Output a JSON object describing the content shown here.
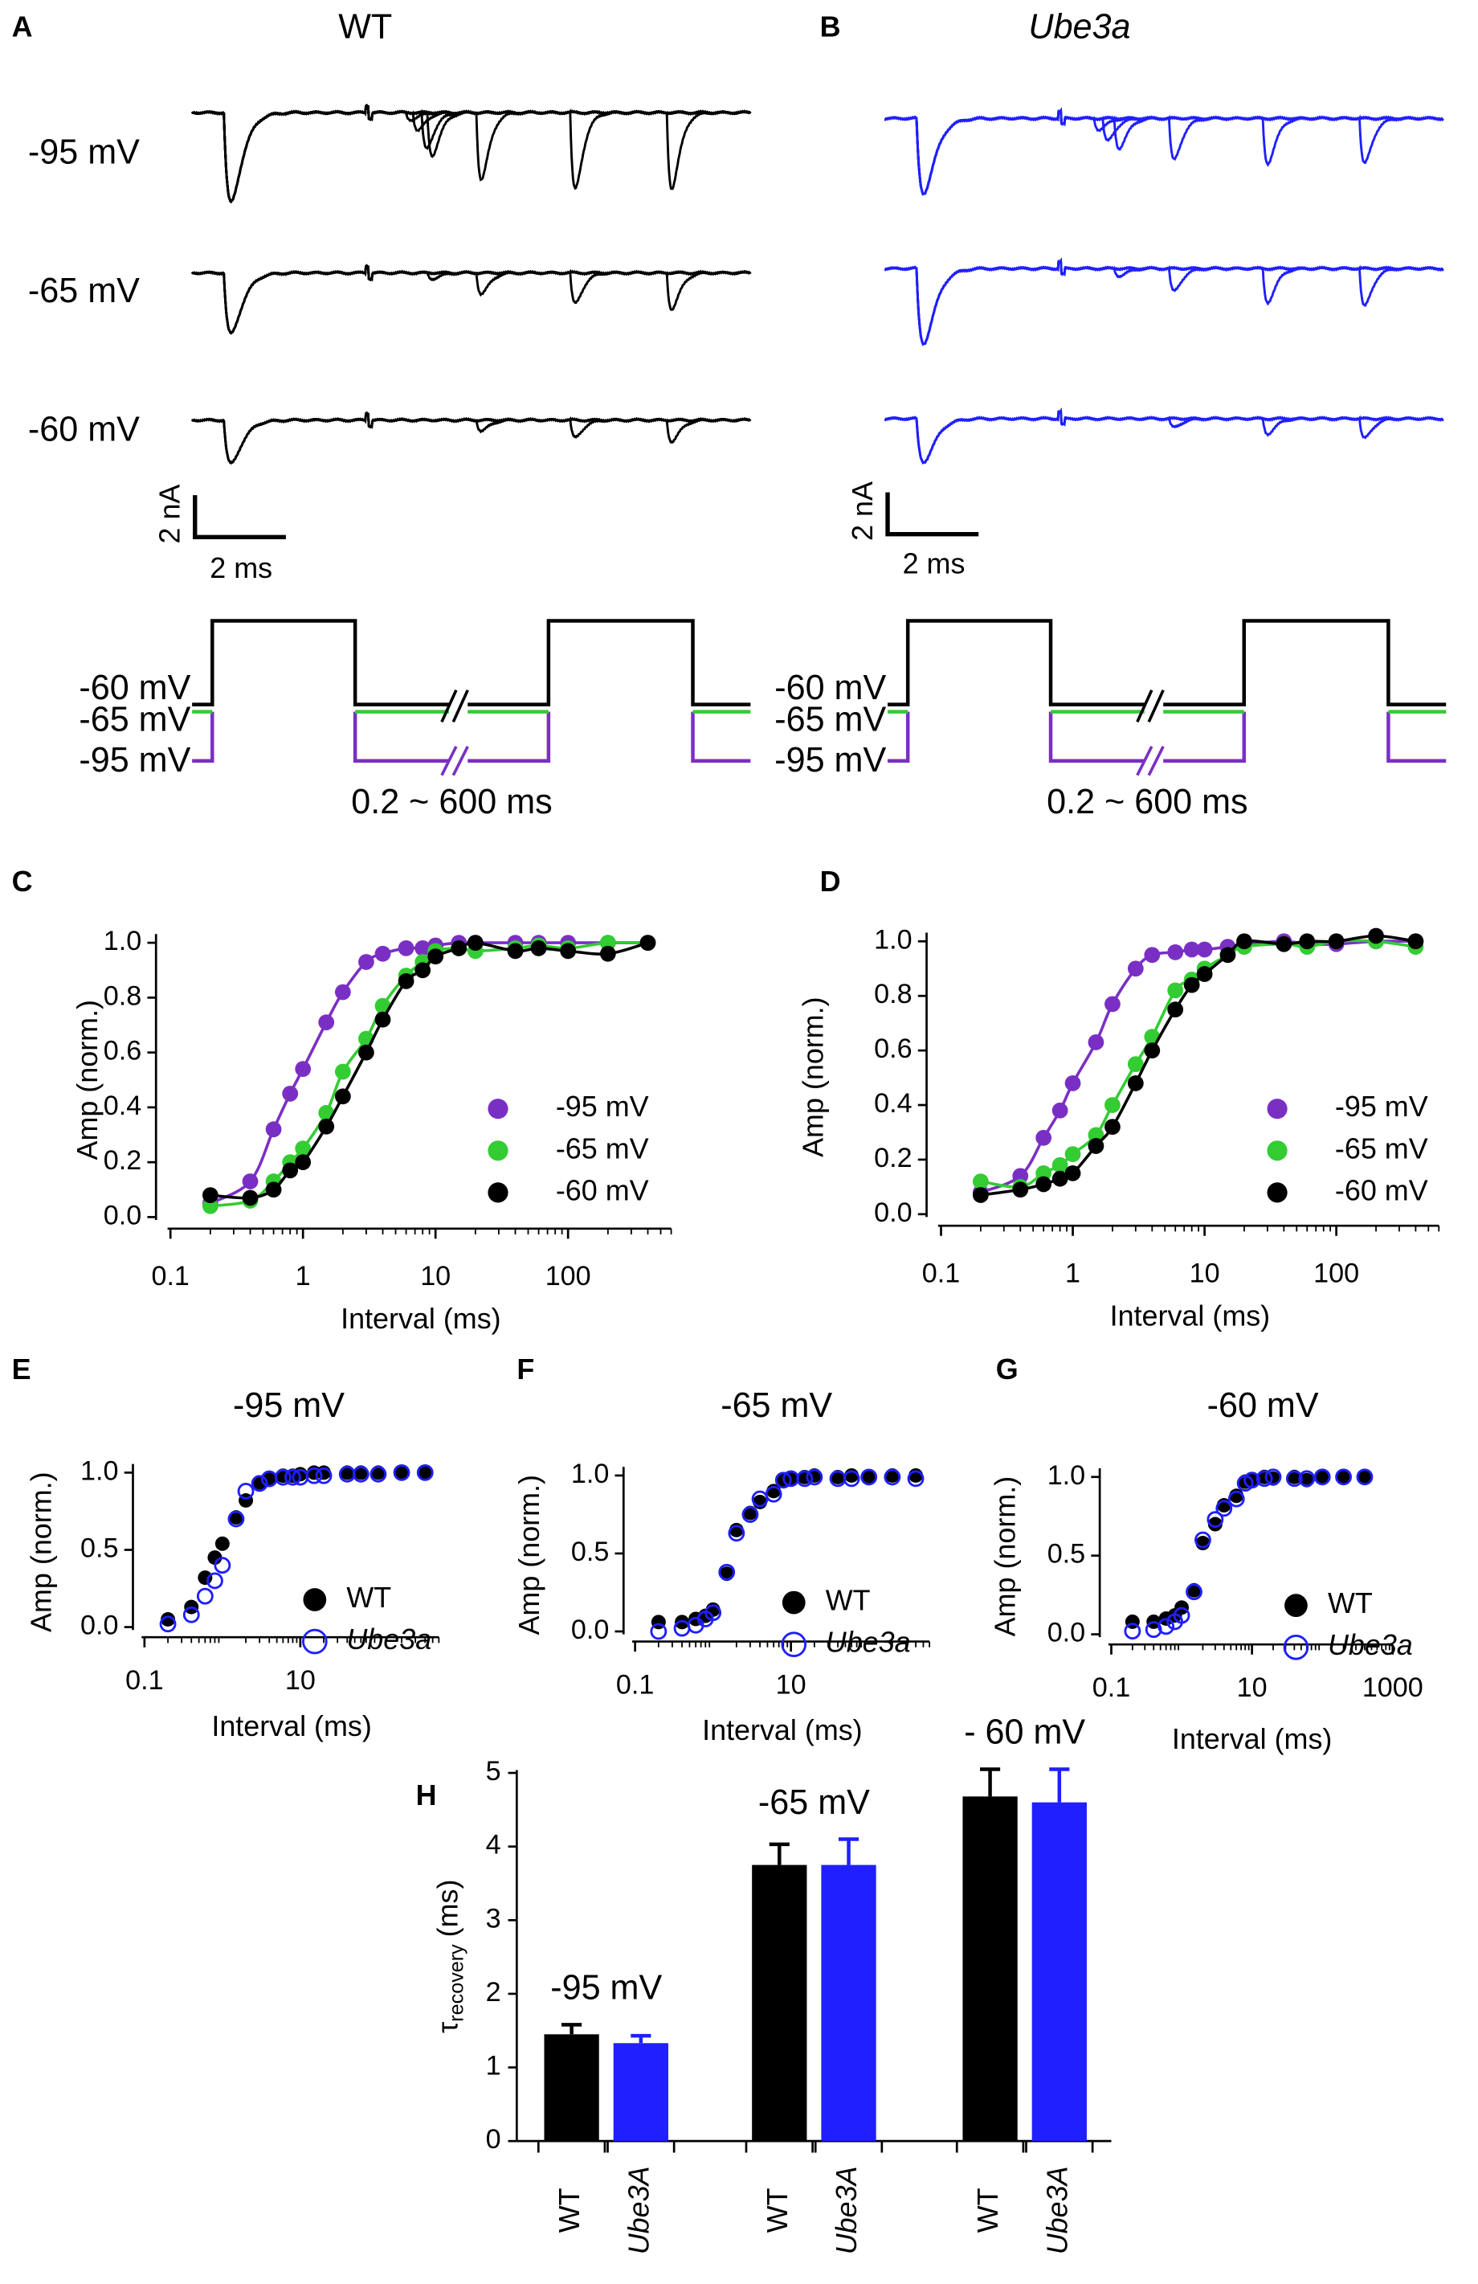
{
  "traces": {
    "A": {
      "letter": "A",
      "title": "WT",
      "color": "#000000",
      "rows": [
        "-95 mV",
        "-65 mV",
        "-60 mV"
      ],
      "scale_y": "2 nA",
      "scale_x": "2 ms",
      "protocol": {
        "levels": [
          "-60 mV",
          "-65 mV",
          "-95 mV"
        ],
        "colors": [
          "#000000",
          "#33cc33",
          "#7a2fc4"
        ],
        "interval": "0.2 ~ 600 ms"
      }
    },
    "B": {
      "letter": "B",
      "title": "Ube3a",
      "color": "#1f1fff",
      "scale_y": "2 nA",
      "scale_x": "2 ms",
      "protocol": {
        "levels": [
          "-60 mV",
          "-65 mV",
          "-95 mV"
        ],
        "colors": [
          "#000000",
          "#33cc33",
          "#7a2fc4"
        ],
        "interval": "0.2 ~ 600 ms"
      }
    }
  },
  "chart_data": [
    {
      "label": "C",
      "type": "scatter",
      "xscale": "log",
      "lines": true,
      "legend": "right",
      "x_label": "Interval (ms)",
      "y_label": "Amp (norm.)",
      "xlim": [
        0.1,
        600
      ],
      "xticks": [
        0.1,
        1,
        10,
        100
      ],
      "ylim": [
        0,
        1
      ],
      "yticks": [
        {
          "value": 0,
          "label": "0.0"
        },
        0.2,
        0.4,
        0.6,
        0.8,
        {
          "value": 1,
          "label": "1.0"
        }
      ],
      "x": [
        0.2,
        0.4,
        0.6,
        0.8,
        1,
        1.5,
        2,
        3,
        4,
        6,
        8,
        10,
        15,
        20,
        40,
        60,
        100,
        200,
        400
      ],
      "series": [
        {
          "name": "-95 mV",
          "color": "#7a2fc4",
          "marker": "filled",
          "values": [
            0.05,
            0.13,
            0.32,
            0.45,
            0.54,
            0.71,
            0.82,
            0.93,
            0.96,
            0.98,
            0.98,
            0.99,
            1.0,
            1.0,
            1.0,
            1.0,
            1.0,
            1.0,
            1.0
          ]
        },
        {
          "name": "-65 mV",
          "color": "#33cc33",
          "marker": "filled",
          "values": [
            0.04,
            0.06,
            0.13,
            0.2,
            0.25,
            0.38,
            0.53,
            0.65,
            0.77,
            0.88,
            0.93,
            0.97,
            0.98,
            0.97,
            0.98,
            0.99,
            0.98,
            1.0,
            1.0
          ]
        },
        {
          "name": "-60 mV",
          "color": "#000000",
          "marker": "filled",
          "values": [
            0.08,
            0.07,
            0.1,
            0.17,
            0.2,
            0.33,
            0.44,
            0.6,
            0.72,
            0.86,
            0.9,
            0.95,
            0.98,
            1.0,
            0.97,
            0.98,
            0.97,
            0.96,
            1.0
          ]
        }
      ]
    },
    {
      "label": "D",
      "type": "scatter",
      "xscale": "log",
      "lines": true,
      "legend": "right",
      "x_label": "Interval (ms)",
      "y_label": "Amp (norm.)",
      "xlim": [
        0.1,
        600
      ],
      "xticks": [
        0.1,
        1,
        10,
        100
      ],
      "ylim": [
        0,
        1
      ],
      "yticks": [
        {
          "value": 0,
          "label": "0.0"
        },
        0.2,
        0.4,
        0.6,
        0.8,
        {
          "value": 1,
          "label": "1.0"
        }
      ],
      "x": [
        0.2,
        0.4,
        0.6,
        0.8,
        1,
        1.5,
        2,
        3,
        4,
        6,
        8,
        10,
        15,
        20,
        40,
        60,
        100,
        200,
        400
      ],
      "series": [
        {
          "name": "-95 mV",
          "color": "#7a2fc4",
          "marker": "filled",
          "values": [
            0.08,
            0.14,
            0.28,
            0.38,
            0.48,
            0.63,
            0.77,
            0.9,
            0.95,
            0.96,
            0.97,
            0.97,
            0.98,
            0.99,
            1.0,
            0.99,
            0.99,
            1.0,
            1.0
          ]
        },
        {
          "name": "-65 mV",
          "color": "#33cc33",
          "marker": "filled",
          "values": [
            0.12,
            0.1,
            0.15,
            0.18,
            0.22,
            0.29,
            0.4,
            0.55,
            0.65,
            0.82,
            0.86,
            0.9,
            0.95,
            0.98,
            0.99,
            0.98,
            1.0,
            1.0,
            0.98
          ]
        },
        {
          "name": "-60 mV",
          "color": "#000000",
          "marker": "filled",
          "values": [
            0.07,
            0.09,
            0.11,
            0.13,
            0.15,
            0.25,
            0.32,
            0.48,
            0.6,
            0.75,
            0.84,
            0.88,
            0.95,
            1.0,
            0.99,
            1.0,
            1.0,
            1.02,
            1.0
          ]
        }
      ]
    },
    {
      "label": "E",
      "type": "scatter",
      "title": "-95 mV",
      "title_color": "#7a2fc4",
      "xscale": "log",
      "lines": false,
      "legend": "right",
      "x_label": "Interval (ms)",
      "y_label": "Amp (norm.)",
      "xlim": [
        0.1,
        600
      ],
      "xticks": [
        0.1,
        10
      ],
      "ylim": [
        0,
        1
      ],
      "yticks": [
        {
          "value": 0,
          "label": "0.0"
        },
        0.5,
        {
          "value": 1,
          "label": "1.0"
        }
      ],
      "x": [
        0.2,
        0.4,
        0.6,
        0.8,
        1,
        1.5,
        2,
        3,
        4,
        6,
        8,
        10,
        15,
        20,
        40,
        60,
        100,
        200,
        400
      ],
      "series": [
        {
          "name": "WT",
          "color": "#000000",
          "marker": "filled",
          "values": [
            0.05,
            0.13,
            0.32,
            0.45,
            0.54,
            0.71,
            0.82,
            0.93,
            0.96,
            0.98,
            0.98,
            0.99,
            1.0,
            1.0,
            1.0,
            1.0,
            1.0,
            1.0,
            1.0
          ]
        },
        {
          "name": "Ube3a",
          "color": "#1f1fff",
          "marker": "open",
          "font_style": "italic",
          "values": [
            0.02,
            0.08,
            0.2,
            0.3,
            0.4,
            0.7,
            0.88,
            0.93,
            0.96,
            0.97,
            0.97,
            0.97,
            0.98,
            0.98,
            0.99,
            0.99,
            0.99,
            1.0,
            1.0
          ]
        }
      ]
    },
    {
      "label": "F",
      "type": "scatter",
      "title": "-65 mV",
      "title_color": "#33cc33",
      "xscale": "log",
      "lines": false,
      "legend": "right",
      "x_label": "Interval (ms)",
      "y_label": "Amp (norm.)",
      "xlim": [
        0.1,
        600
      ],
      "xticks": [
        0.1,
        10
      ],
      "ylim": [
        0,
        1
      ],
      "yticks": [
        {
          "value": 0,
          "label": "0.0"
        },
        0.5,
        {
          "value": 1,
          "label": "1.0"
        }
      ],
      "x": [
        0.2,
        0.4,
        0.6,
        0.8,
        1,
        1.5,
        2,
        3,
        4,
        6,
        8,
        10,
        15,
        20,
        40,
        60,
        100,
        200,
        400
      ],
      "series": [
        {
          "name": "WT",
          "color": "#000000",
          "marker": "filled",
          "values": [
            0.06,
            0.06,
            0.08,
            0.1,
            0.14,
            0.37,
            0.65,
            0.76,
            0.83,
            0.9,
            0.97,
            0.98,
            0.99,
            1.0,
            0.99,
            1.0,
            0.99,
            1.0,
            1.0
          ]
        },
        {
          "name": "Ube3a",
          "color": "#1f1fff",
          "marker": "open",
          "font_style": "italic",
          "values": [
            0.0,
            0.02,
            0.04,
            0.08,
            0.12,
            0.38,
            0.63,
            0.75,
            0.85,
            0.88,
            0.97,
            0.98,
            0.98,
            0.99,
            0.98,
            0.98,
            0.99,
            0.99,
            0.98
          ]
        }
      ]
    },
    {
      "label": "G",
      "type": "scatter",
      "title": "-60 mV",
      "title_color": "#000000",
      "xscale": "log",
      "lines": false,
      "legend": "right",
      "x_label": "Interval (ms)",
      "y_label": "Amp (norm.)",
      "xlim": [
        0.1,
        1000
      ],
      "xticks": [
        0.1,
        10,
        1000
      ],
      "ylim": [
        0,
        1
      ],
      "yticks": [
        {
          "value": 0,
          "label": "0.0"
        },
        0.5,
        {
          "value": 1,
          "label": "1.0"
        }
      ],
      "x": [
        0.2,
        0.4,
        0.6,
        0.8,
        1,
        1.5,
        2,
        3,
        4,
        6,
        8,
        10,
        15,
        20,
        40,
        60,
        100,
        200,
        400
      ],
      "series": [
        {
          "name": "WT",
          "color": "#000000",
          "marker": "filled",
          "values": [
            0.08,
            0.08,
            0.1,
            0.12,
            0.17,
            0.28,
            0.58,
            0.7,
            0.82,
            0.88,
            0.97,
            0.98,
            1.0,
            0.99,
            1.0,
            0.98,
            1.0,
            1.0,
            1.0
          ]
        },
        {
          "name": "Ube3a",
          "color": "#1f1fff",
          "marker": "open",
          "font_style": "italic",
          "values": [
            0.02,
            0.03,
            0.05,
            0.08,
            0.12,
            0.27,
            0.6,
            0.73,
            0.8,
            0.86,
            0.96,
            0.98,
            0.99,
            1.0,
            0.99,
            0.99,
            1.0,
            1.0,
            1.0
          ]
        }
      ]
    },
    {
      "label": "H",
      "type": "bar",
      "y_label": {
        "symbol": "τ",
        "subscript": "recovery",
        "unit": "(ms)"
      },
      "ylim": [
        0,
        5
      ],
      "yticks": [
        0,
        1,
        2,
        3,
        4,
        5
      ],
      "categories": [
        "-95 mV",
        "-65 mV",
        "- 60 mV"
      ],
      "category_colors": [
        "#7a2fc4",
        "#33cc33",
        "#000000"
      ],
      "series": [
        {
          "name": "WT",
          "color": "#000000",
          "values": [
            1.45,
            3.75,
            4.68
          ],
          "errors": [
            0.13,
            0.28,
            0.37
          ]
        },
        {
          "name": "Ube3A",
          "color": "#1f1fff",
          "font_style": "italic",
          "values": [
            1.33,
            3.75,
            4.6
          ],
          "errors": [
            0.1,
            0.35,
            0.45
          ]
        }
      ]
    }
  ]
}
